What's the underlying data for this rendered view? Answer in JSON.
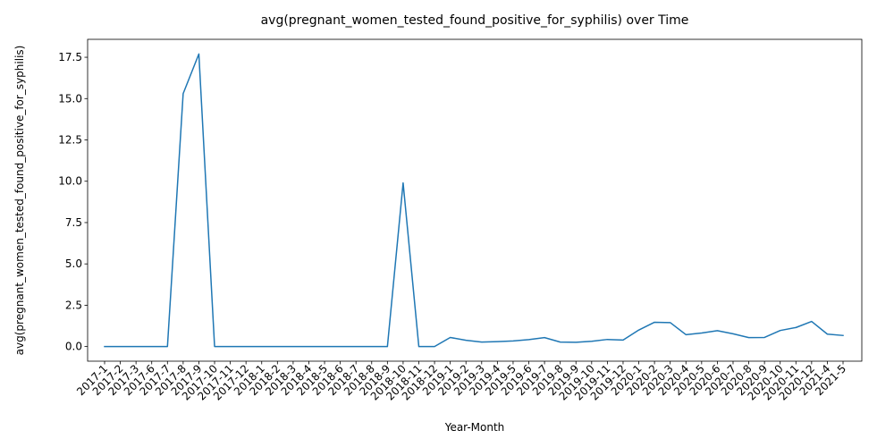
{
  "chart_data": {
    "type": "line",
    "title": "avg(pregnant_women_tested_found_positive_for_syphilis) over Time",
    "xlabel": "Year-Month",
    "ylabel": "avg(pregnant_women_tested_found_positive_for_syphilis)",
    "ylim": [
      -0.885,
      18.585
    ],
    "yticks": [
      "0.0",
      "2.5",
      "5.0",
      "7.5",
      "10.0",
      "12.5",
      "15.0",
      "17.5"
    ],
    "ytick_values": [
      0,
      2.5,
      5,
      7.5,
      10,
      12.5,
      15,
      17.5
    ],
    "grid": false,
    "line_color": "#1f77b4",
    "x": [
      "2017-1",
      "2017-2",
      "2017-3",
      "2017-6",
      "2017-7",
      "2017-8",
      "2017-9",
      "2017-10",
      "2017-11",
      "2017-12",
      "2018-1",
      "2018-2",
      "2018-3",
      "2018-4",
      "2018-5",
      "2018-6",
      "2018-7",
      "2018-8",
      "2018-9",
      "2018-10",
      "2018-11",
      "2018-12",
      "2019-1",
      "2019-2",
      "2019-3",
      "2019-4",
      "2019-5",
      "2019-6",
      "2019-7",
      "2019-8",
      "2019-9",
      "2019-10",
      "2019-11",
      "2019-12",
      "2020-1",
      "2020-2",
      "2020-3",
      "2020-4",
      "2020-5",
      "2020-6",
      "2020-7",
      "2020-8",
      "2020-9",
      "2020-10",
      "2020-11",
      "2020-12",
      "2021-4",
      "2021-5"
    ],
    "values": [
      0,
      0,
      0,
      0,
      0,
      15.3,
      17.7,
      0,
      0,
      0,
      0,
      0,
      0,
      0,
      0,
      0,
      0,
      0,
      0,
      9.9,
      0,
      0,
      0.55,
      0.38,
      0.27,
      0.3,
      0.34,
      0.42,
      0.54,
      0.27,
      0.26,
      0.32,
      0.43,
      0.39,
      1.0,
      1.47,
      1.45,
      0.72,
      0.82,
      0.96,
      0.77,
      0.54,
      0.55,
      0.97,
      1.15,
      1.52,
      0.75,
      0.67
    ]
  }
}
